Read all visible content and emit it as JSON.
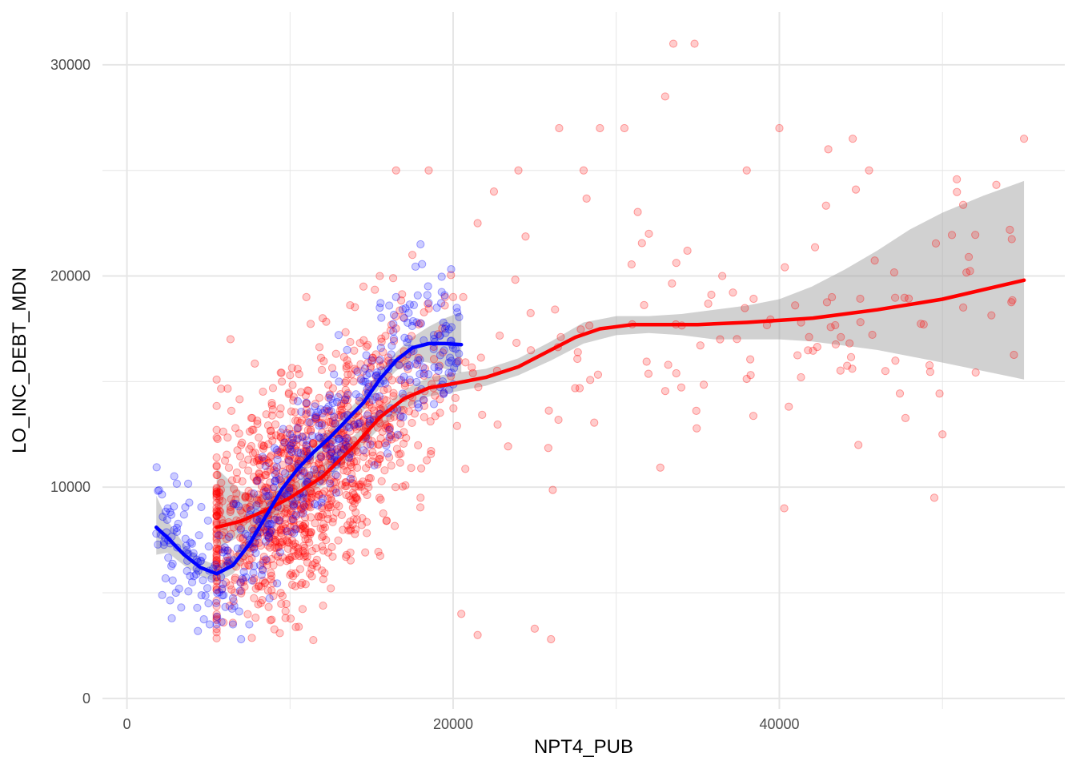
{
  "chart_data": {
    "type": "scatter",
    "title": "",
    "xlabel": "NPT4_PUB",
    "ylabel": "LO_INC_DEBT_MDN",
    "xlim": [
      -1500,
      57500
    ],
    "ylim": [
      -500,
      32500
    ],
    "x_ticks": [
      0,
      20000,
      40000
    ],
    "x_tick_labels": [
      "0",
      "20000",
      "40000"
    ],
    "x_minor_ticks": [
      10000,
      30000,
      50000
    ],
    "y_ticks": [
      0,
      10000,
      20000,
      30000
    ],
    "y_tick_labels": [
      "0",
      "10000",
      "20000",
      "30000"
    ],
    "y_minor_ticks": [
      5000,
      15000,
      25000
    ],
    "grid": true,
    "legend": "none",
    "colors": {
      "red_series": "#ff0000",
      "blue_series": "#0000ff",
      "confidence_band": "#999999",
      "gridline": "#e6e6e6"
    },
    "series": [
      {
        "color": "#ff0000",
        "point_opacity": 0.2,
        "n_points_approx": 1250,
        "x_range": [
          5500,
          55000
        ],
        "points_sample": [
          [
            7000,
            12000
          ],
          [
            7500,
            11800
          ],
          [
            8000,
            13000
          ],
          [
            9500,
            15000
          ],
          [
            10000,
            15300
          ],
          [
            11000,
            19000
          ],
          [
            12000,
            18000
          ],
          [
            12500,
            9500
          ],
          [
            13500,
            16000
          ],
          [
            14500,
            19500
          ],
          [
            15500,
            20000
          ],
          [
            16500,
            25000
          ],
          [
            17500,
            21000
          ],
          [
            18500,
            25000
          ],
          [
            19500,
            19000
          ],
          [
            20000,
            19000
          ],
          [
            20500,
            4000
          ],
          [
            21500,
            22500
          ],
          [
            22500,
            24000
          ],
          [
            24000,
            25000
          ],
          [
            26500,
            27000
          ],
          [
            28000,
            25000
          ],
          [
            29000,
            27000
          ],
          [
            30500,
            27000
          ],
          [
            32000,
            22000
          ],
          [
            33000,
            28500
          ],
          [
            33500,
            31000
          ],
          [
            34800,
            31000
          ],
          [
            36500,
            20000
          ],
          [
            38000,
            25000
          ],
          [
            40000,
            27000
          ],
          [
            40300,
            9000
          ],
          [
            43000,
            26000
          ],
          [
            44500,
            26500
          ],
          [
            45500,
            25000
          ],
          [
            46500,
            15500
          ],
          [
            49500,
            9500
          ],
          [
            50000,
            12500
          ],
          [
            55000,
            26500
          ],
          [
            26000,
            2800
          ],
          [
            25000,
            3300
          ],
          [
            21500,
            3000
          ],
          [
            11000,
            9500
          ],
          [
            14000,
            9500
          ],
          [
            18000,
            9500
          ]
        ],
        "smooth_curve": [
          [
            5500,
            8100
          ],
          [
            7000,
            8400
          ],
          [
            8500,
            8900
          ],
          [
            10000,
            9500
          ],
          [
            12000,
            10500
          ],
          [
            14000,
            12000
          ],
          [
            15500,
            13300
          ],
          [
            17000,
            14200
          ],
          [
            18500,
            14700
          ],
          [
            20000,
            14900
          ],
          [
            22000,
            15200
          ],
          [
            24000,
            15700
          ],
          [
            26000,
            16500
          ],
          [
            27500,
            17100
          ],
          [
            29000,
            17500
          ],
          [
            31000,
            17700
          ],
          [
            33000,
            17700
          ],
          [
            35000,
            17700
          ],
          [
            38000,
            17800
          ],
          [
            42000,
            18000
          ],
          [
            46000,
            18400
          ],
          [
            50000,
            18900
          ],
          [
            55000,
            19800
          ]
        ],
        "confidence_band": [
          [
            5500,
            7100,
            10900
          ],
          [
            7000,
            7700,
            9800
          ],
          [
            8500,
            8300,
            9600
          ],
          [
            10000,
            9000,
            10100
          ],
          [
            12000,
            10100,
            11100
          ],
          [
            14000,
            11600,
            12500
          ],
          [
            15500,
            12800,
            13700
          ],
          [
            17000,
            13700,
            14600
          ],
          [
            18500,
            14300,
            15200
          ],
          [
            20000,
            14500,
            15400
          ],
          [
            22000,
            14800,
            15600
          ],
          [
            24000,
            15300,
            16100
          ],
          [
            26000,
            16000,
            16900
          ],
          [
            28000,
            16800,
            17800
          ],
          [
            30000,
            17200,
            18100
          ],
          [
            32000,
            17300,
            18100
          ],
          [
            34000,
            17200,
            18200
          ],
          [
            36000,
            17000,
            18400
          ],
          [
            38000,
            17000,
            18600
          ],
          [
            40000,
            17000,
            18900
          ],
          [
            42000,
            16900,
            19500
          ],
          [
            44000,
            16700,
            20300
          ],
          [
            46000,
            16500,
            21200
          ],
          [
            48000,
            16200,
            22200
          ],
          [
            50000,
            15900,
            23000
          ],
          [
            52500,
            15500,
            23800
          ],
          [
            55000,
            15100,
            24500
          ]
        ]
      },
      {
        "color": "#0000ff",
        "point_opacity": 0.2,
        "n_points_approx": 430,
        "x_range": [
          1800,
          20500
        ],
        "points_sample": [
          [
            1800,
            7800
          ],
          [
            2200,
            8600
          ],
          [
            2500,
            9000
          ],
          [
            3000,
            5000
          ],
          [
            3500,
            8700
          ],
          [
            4000,
            5500
          ],
          [
            4500,
            6500
          ],
          [
            5000,
            4500
          ],
          [
            5500,
            3500
          ],
          [
            6000,
            7000
          ],
          [
            6500,
            3500
          ],
          [
            7000,
            2800
          ],
          [
            7500,
            3500
          ],
          [
            8000,
            10300
          ],
          [
            8500,
            11000
          ],
          [
            9000,
            10000
          ],
          [
            10000,
            12500
          ],
          [
            11000,
            14000
          ],
          [
            12000,
            13500
          ],
          [
            13000,
            15000
          ],
          [
            13500,
            16500
          ],
          [
            14500,
            15000
          ],
          [
            15000,
            16000
          ],
          [
            15500,
            18500
          ],
          [
            16500,
            19000
          ],
          [
            17000,
            18000
          ],
          [
            18000,
            21500
          ],
          [
            19000,
            18500
          ],
          [
            19500,
            17500
          ]
        ],
        "smooth_curve": [
          [
            1800,
            8100
          ],
          [
            2500,
            7600
          ],
          [
            3500,
            6800
          ],
          [
            4500,
            6200
          ],
          [
            5500,
            5900
          ],
          [
            6500,
            6300
          ],
          [
            7500,
            7300
          ],
          [
            8500,
            8600
          ],
          [
            9500,
            9900
          ],
          [
            10500,
            10900
          ],
          [
            11500,
            11700
          ],
          [
            12500,
            12400
          ],
          [
            13500,
            13200
          ],
          [
            14500,
            14000
          ],
          [
            15500,
            15100
          ],
          [
            16500,
            16000
          ],
          [
            17500,
            16600
          ],
          [
            18500,
            16800
          ],
          [
            19500,
            16800
          ],
          [
            20500,
            16750
          ]
        ],
        "confidence_band": [
          [
            1800,
            6800,
            9600
          ],
          [
            2500,
            6900,
            8400
          ],
          [
            3500,
            6300,
            7300
          ],
          [
            4500,
            5800,
            6600
          ],
          [
            5500,
            5500,
            6300
          ],
          [
            6500,
            5900,
            6700
          ],
          [
            7500,
            6800,
            7800
          ],
          [
            8500,
            8100,
            9100
          ],
          [
            9500,
            9400,
            10400
          ],
          [
            10500,
            10500,
            11400
          ],
          [
            11500,
            11300,
            12100
          ],
          [
            12500,
            12000,
            12800
          ],
          [
            13500,
            12800,
            13600
          ],
          [
            14500,
            13600,
            14400
          ],
          [
            15500,
            14700,
            15500
          ],
          [
            16500,
            15500,
            16400
          ],
          [
            17500,
            16000,
            17100
          ],
          [
            18500,
            15900,
            17600
          ],
          [
            19500,
            15600,
            18000
          ],
          [
            20500,
            15400,
            18300
          ]
        ]
      }
    ]
  }
}
